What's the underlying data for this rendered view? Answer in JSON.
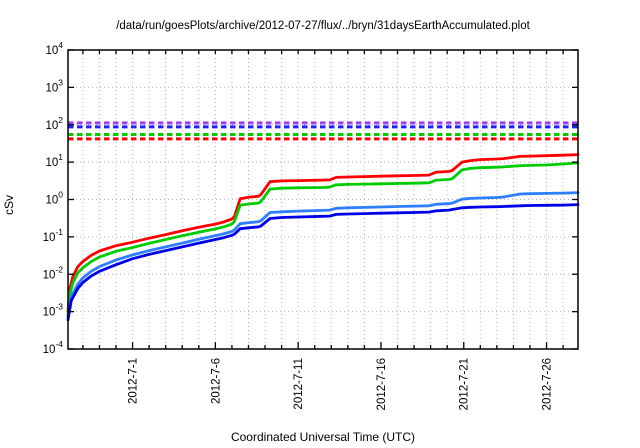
{
  "title": "/data/run/goesPlots/archive/2012-07-27/flux/../bryn/31daysEarthAccumulated.plot",
  "chart_data": {
    "type": "line",
    "title": "/data/run/goesPlots/archive/2012-07-27/flux/../bryn/31daysEarthAccumulated.plot",
    "xlabel": "Coordinated Universal Time (UTC)",
    "ylabel": "cSv",
    "y_scale": "log",
    "y_tick_exponents": [
      4,
      3,
      2,
      1,
      0,
      -1,
      -2,
      -3,
      -4
    ],
    "ylim": [
      0.0001,
      10000
    ],
    "grid": true,
    "x_axis": {
      "unit": "days",
      "range_days": [
        0.1,
        30.9
      ],
      "minor_tick_every_days": 1,
      "major_ticks": [
        {
          "day": 4,
          "label": "2012-7-1"
        },
        {
          "day": 9,
          "label": "2012-7-6"
        },
        {
          "day": 14,
          "label": "2012-7-11"
        },
        {
          "day": 19,
          "label": "2012-7-16"
        },
        {
          "day": 24,
          "label": "2012-7-21"
        },
        {
          "day": 29,
          "label": "2012-7-26"
        }
      ]
    },
    "thresholds": [
      {
        "name": "purple-limit",
        "value": 112,
        "color": "#a040f0"
      },
      {
        "name": "blue-limit",
        "value": 88,
        "color": "#2020ff"
      },
      {
        "name": "green-limit",
        "value": 55,
        "color": "#00cc00"
      },
      {
        "name": "red-limit",
        "value": 42,
        "color": "#ff0000"
      }
    ],
    "series": [
      {
        "name": "red-accumulated-dose",
        "color": "#ff0000",
        "points": [
          [
            0.1,
            0.001
          ],
          [
            0.2,
            0.004
          ],
          [
            0.4,
            0.009
          ],
          [
            0.7,
            0.016
          ],
          [
            1,
            0.022
          ],
          [
            1.5,
            0.032
          ],
          [
            2,
            0.042
          ],
          [
            3,
            0.058
          ],
          [
            4,
            0.072
          ],
          [
            5,
            0.092
          ],
          [
            6,
            0.115
          ],
          [
            7,
            0.145
          ],
          [
            8,
            0.18
          ],
          [
            9,
            0.22
          ],
          [
            9.5,
            0.25
          ],
          [
            10,
            0.3
          ],
          [
            10.15,
            0.35
          ],
          [
            10.5,
            1.05
          ],
          [
            11,
            1.15
          ],
          [
            11.6,
            1.22
          ],
          [
            11.75,
            1.35
          ],
          [
            12.3,
            3
          ],
          [
            13,
            3.15
          ],
          [
            14,
            3.2
          ],
          [
            15.5,
            3.3
          ],
          [
            15.9,
            3.35
          ],
          [
            16.3,
            3.9
          ],
          [
            17,
            4
          ],
          [
            18,
            4.1
          ],
          [
            19,
            4.2
          ],
          [
            20,
            4.3
          ],
          [
            21,
            4.4
          ],
          [
            21.9,
            4.5
          ],
          [
            22.35,
            5.4
          ],
          [
            23.1,
            5.6
          ],
          [
            23.3,
            6
          ],
          [
            23.9,
            10
          ],
          [
            24.4,
            11
          ],
          [
            25,
            11.7
          ],
          [
            26,
            12.1
          ],
          [
            26.4,
            12.4
          ],
          [
            27.4,
            14.2
          ],
          [
            28,
            14.5
          ],
          [
            29,
            14.9
          ],
          [
            30,
            15.3
          ],
          [
            30.9,
            15.9
          ]
        ]
      },
      {
        "name": "green-accumulated-dose",
        "color": "#00cc00",
        "points": [
          [
            0.1,
            0.0008
          ],
          [
            0.2,
            0.0028
          ],
          [
            0.4,
            0.006
          ],
          [
            0.7,
            0.011
          ],
          [
            1,
            0.015
          ],
          [
            1.5,
            0.022
          ],
          [
            2,
            0.029
          ],
          [
            3,
            0.041
          ],
          [
            4,
            0.052
          ],
          [
            5,
            0.067
          ],
          [
            6,
            0.085
          ],
          [
            7,
            0.107
          ],
          [
            8,
            0.133
          ],
          [
            9,
            0.163
          ],
          [
            9.5,
            0.185
          ],
          [
            10,
            0.22
          ],
          [
            10.15,
            0.26
          ],
          [
            10.5,
            0.7
          ],
          [
            11,
            0.76
          ],
          [
            11.6,
            0.8
          ],
          [
            11.75,
            0.88
          ],
          [
            12.3,
            1.9
          ],
          [
            13,
            2
          ],
          [
            14,
            2.05
          ],
          [
            15.5,
            2.1
          ],
          [
            15.9,
            2.15
          ],
          [
            16.3,
            2.48
          ],
          [
            17,
            2.53
          ],
          [
            18,
            2.58
          ],
          [
            19,
            2.63
          ],
          [
            20,
            2.68
          ],
          [
            21,
            2.73
          ],
          [
            21.9,
            2.8
          ],
          [
            22.35,
            3.3
          ],
          [
            23.1,
            3.42
          ],
          [
            23.3,
            3.6
          ],
          [
            23.9,
            6.2
          ],
          [
            24.4,
            6.8
          ],
          [
            25,
            7.1
          ],
          [
            26,
            7.3
          ],
          [
            26.4,
            7.45
          ],
          [
            27.4,
            8
          ],
          [
            28,
            8.15
          ],
          [
            29,
            8.4
          ],
          [
            30,
            8.9
          ],
          [
            30.9,
            9.6
          ]
        ]
      },
      {
        "name": "lightblue-accumulated-dose",
        "color": "#2e7fff",
        "points": [
          [
            0.1,
            0.0007
          ],
          [
            0.3,
            0.0025
          ],
          [
            0.7,
            0.0055
          ],
          [
            1,
            0.008
          ],
          [
            1.5,
            0.012
          ],
          [
            2,
            0.016
          ],
          [
            3,
            0.024
          ],
          [
            4,
            0.033
          ],
          [
            5,
            0.043
          ],
          [
            6,
            0.054
          ],
          [
            7,
            0.068
          ],
          [
            8,
            0.086
          ],
          [
            9,
            0.108
          ],
          [
            9.5,
            0.12
          ],
          [
            10,
            0.14
          ],
          [
            10.15,
            0.155
          ],
          [
            10.5,
            0.225
          ],
          [
            11,
            0.24
          ],
          [
            11.6,
            0.255
          ],
          [
            11.75,
            0.27
          ],
          [
            12.3,
            0.45
          ],
          [
            13,
            0.47
          ],
          [
            14,
            0.49
          ],
          [
            15.5,
            0.51
          ],
          [
            15.9,
            0.52
          ],
          [
            16.3,
            0.58
          ],
          [
            17,
            0.6
          ],
          [
            18,
            0.615
          ],
          [
            19,
            0.63
          ],
          [
            20,
            0.65
          ],
          [
            21,
            0.665
          ],
          [
            21.9,
            0.68
          ],
          [
            22.35,
            0.75
          ],
          [
            23.1,
            0.77
          ],
          [
            23.3,
            0.8
          ],
          [
            23.9,
            1.02
          ],
          [
            24.4,
            1.07
          ],
          [
            25,
            1.1
          ],
          [
            26,
            1.13
          ],
          [
            26.4,
            1.17
          ],
          [
            27.4,
            1.4
          ],
          [
            28,
            1.43
          ],
          [
            29,
            1.46
          ],
          [
            30,
            1.48
          ],
          [
            30.9,
            1.52
          ]
        ]
      },
      {
        "name": "blue-accumulated-dose",
        "color": "#0000e8",
        "points": [
          [
            0.1,
            0.0006
          ],
          [
            0.3,
            0.002
          ],
          [
            0.7,
            0.0042
          ],
          [
            1,
            0.006
          ],
          [
            1.5,
            0.009
          ],
          [
            2,
            0.012
          ],
          [
            3,
            0.018
          ],
          [
            4,
            0.026
          ],
          [
            5,
            0.034
          ],
          [
            6,
            0.043
          ],
          [
            7,
            0.054
          ],
          [
            8,
            0.068
          ],
          [
            9,
            0.085
          ],
          [
            9.5,
            0.095
          ],
          [
            10,
            0.11
          ],
          [
            10.15,
            0.118
          ],
          [
            10.5,
            0.165
          ],
          [
            11,
            0.175
          ],
          [
            11.6,
            0.185
          ],
          [
            11.75,
            0.195
          ],
          [
            12.3,
            0.31
          ],
          [
            13,
            0.33
          ],
          [
            14,
            0.34
          ],
          [
            15.5,
            0.355
          ],
          [
            15.9,
            0.36
          ],
          [
            16.3,
            0.4
          ],
          [
            17,
            0.41
          ],
          [
            18,
            0.42
          ],
          [
            19,
            0.43
          ],
          [
            20,
            0.44
          ],
          [
            21,
            0.45
          ],
          [
            21.9,
            0.46
          ],
          [
            22.35,
            0.5
          ],
          [
            23.1,
            0.52
          ],
          [
            23.3,
            0.54
          ],
          [
            23.9,
            0.6
          ],
          [
            24.4,
            0.62
          ],
          [
            25,
            0.63
          ],
          [
            26,
            0.64
          ],
          [
            26.4,
            0.65
          ],
          [
            27.4,
            0.68
          ],
          [
            28,
            0.69
          ],
          [
            29,
            0.7
          ],
          [
            30,
            0.71
          ],
          [
            30.9,
            0.73
          ]
        ]
      }
    ],
    "colors": {
      "grid": "#b4b4b4",
      "frame": "#000000",
      "background": "#ffffff"
    }
  }
}
